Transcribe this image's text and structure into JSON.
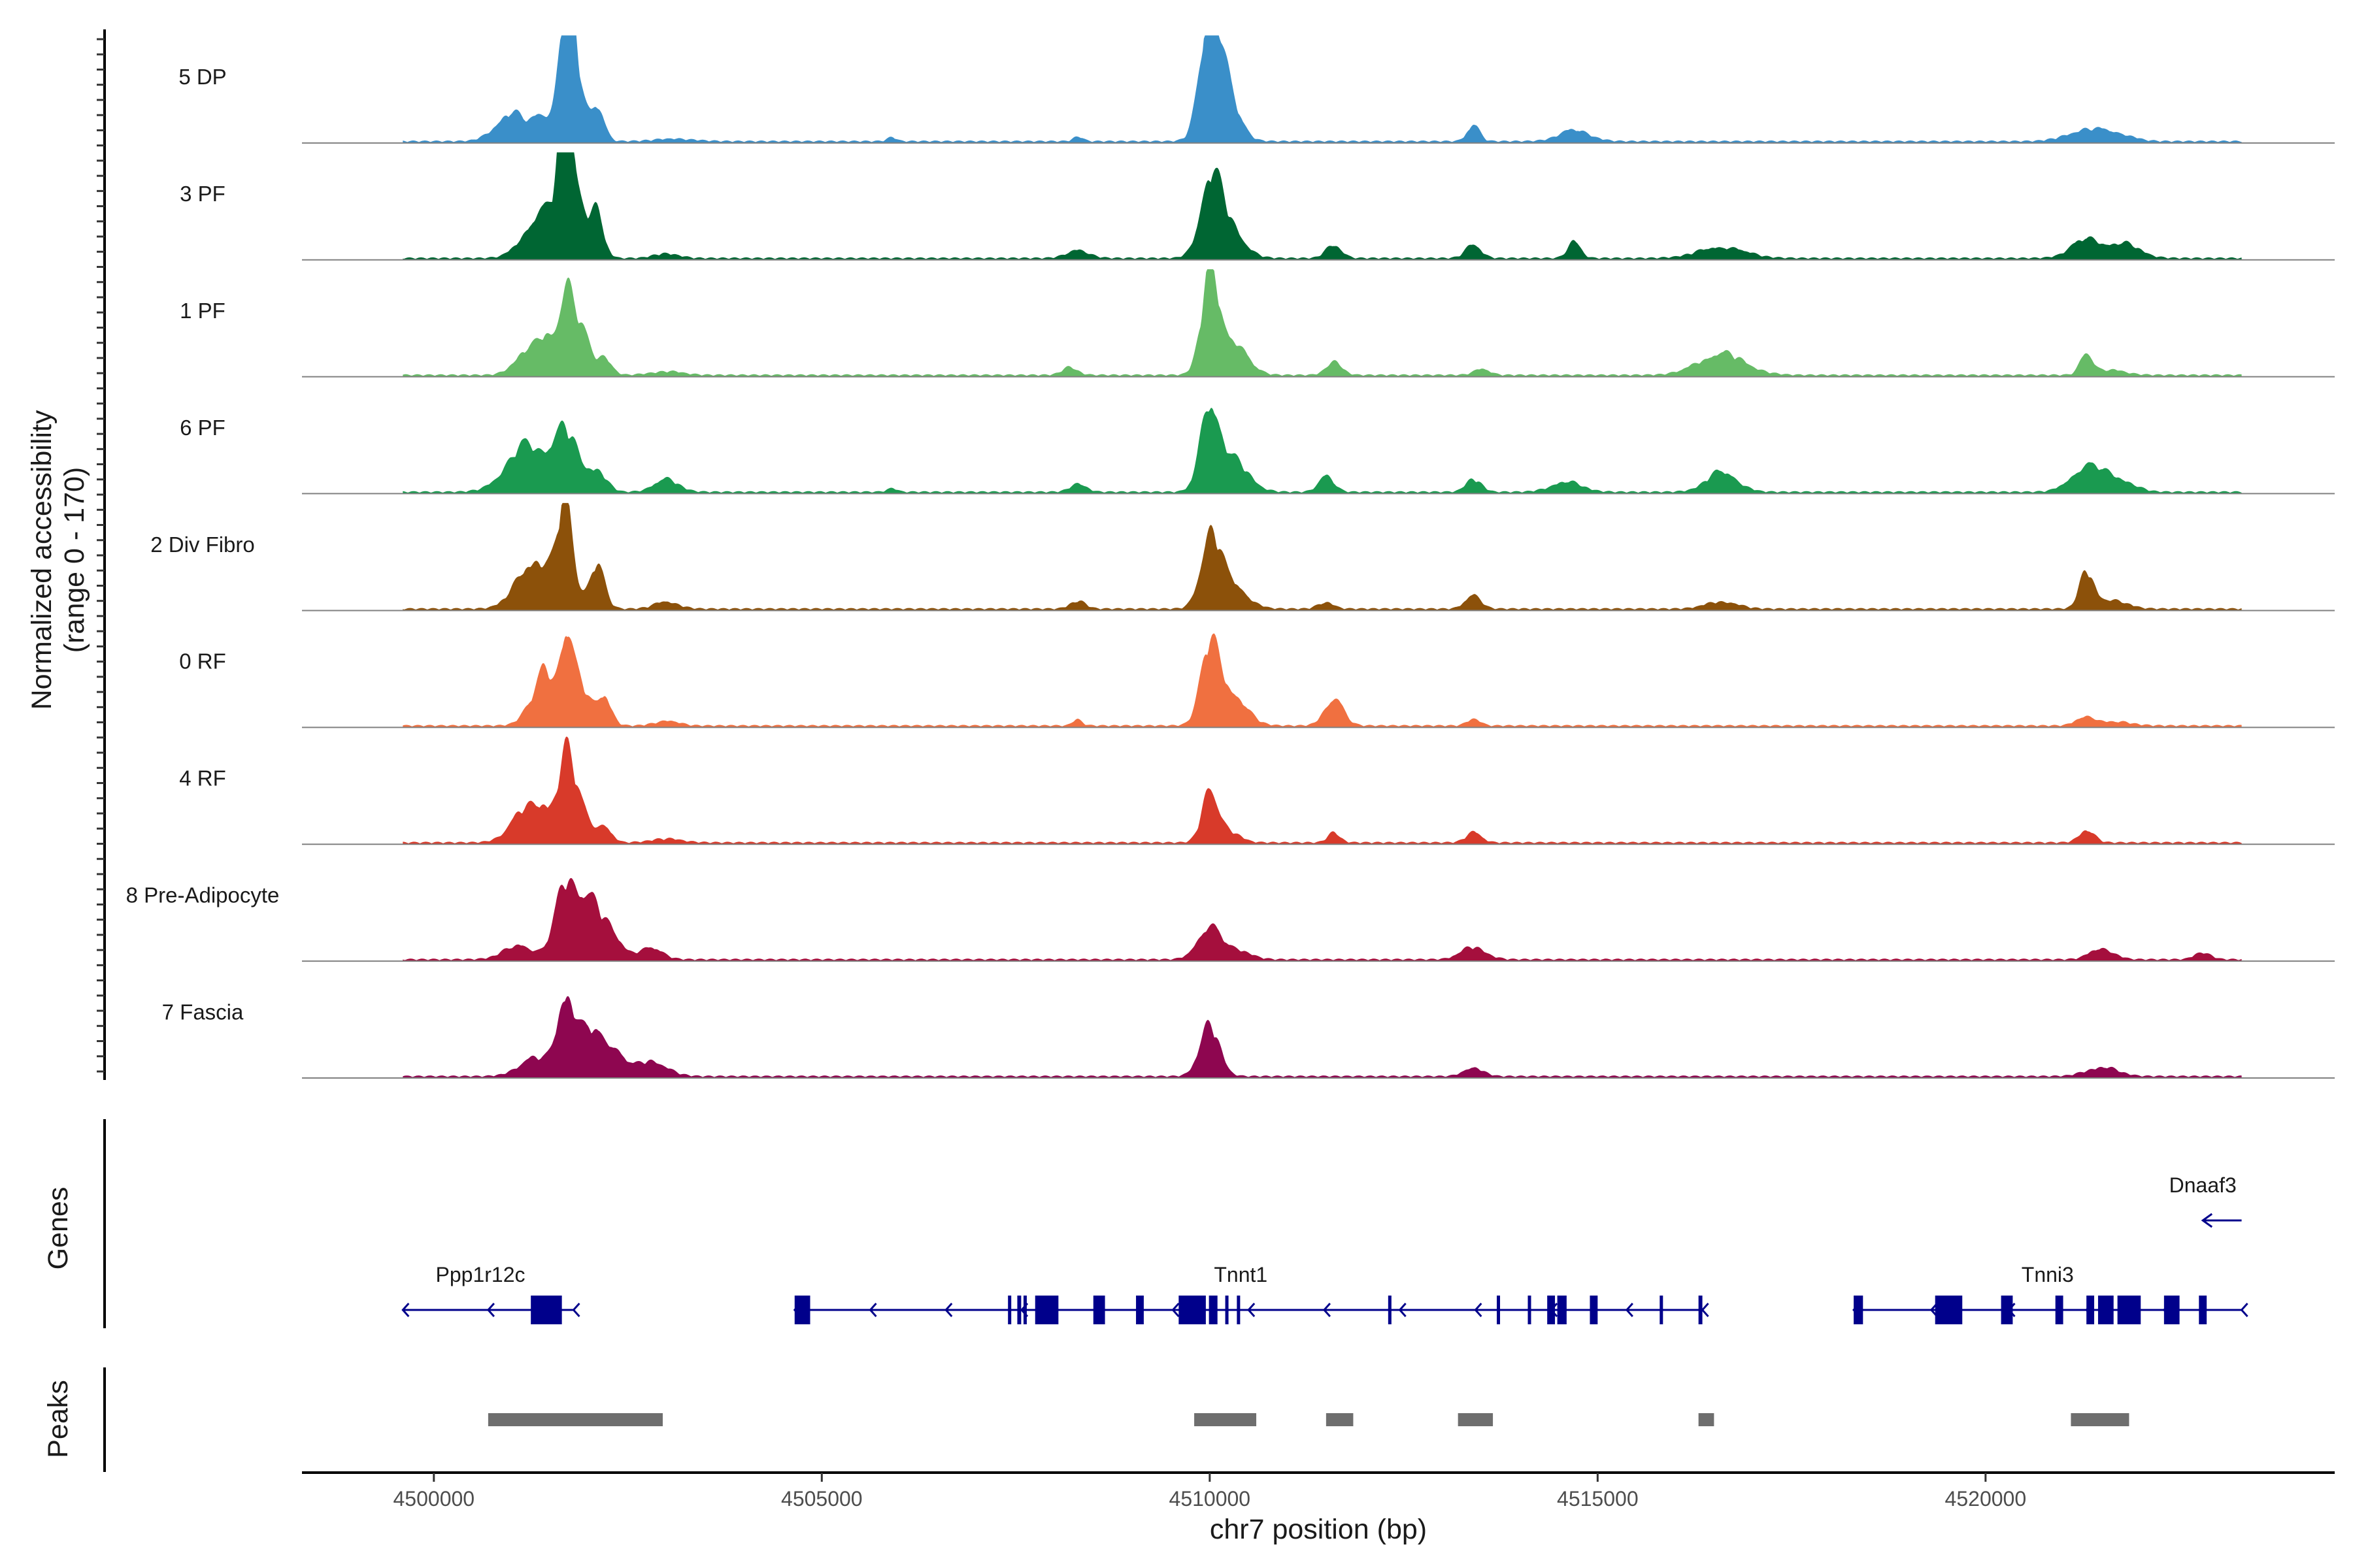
{
  "chart_data": {
    "type": "area",
    "title": "",
    "xlabel": "chr7 position (bp)",
    "ylabel": "Normalized accessibility",
    "ylabel_sub": "(range 0 - 170)",
    "xlim": [
      4498300,
      4524500
    ],
    "ylim": [
      0,
      170
    ],
    "x_ticks": [
      4500000,
      4505000,
      4510000,
      4515000,
      4520000
    ],
    "x_tick_labels": [
      "4500000",
      "4505000",
      "4510000",
      "4515000",
      "4520000"
    ],
    "coverage_range": [
      4499600,
      4523300
    ],
    "tracks": [
      {
        "name": "5 DP",
        "color": "#3A8FC9",
        "peaks": [
          [
            4501000,
            45,
            200
          ],
          [
            4501400,
            40,
            110
          ],
          [
            4501700,
            170,
            90
          ],
          [
            4501800,
            120,
            120
          ],
          [
            4502100,
            55,
            90
          ],
          [
            4503100,
            4,
            250
          ],
          [
            4505900,
            6,
            60
          ],
          [
            4508300,
            8,
            60
          ],
          [
            4510000,
            165,
            120
          ],
          [
            4510150,
            100,
            180
          ],
          [
            4513400,
            25,
            80
          ],
          [
            4514700,
            18,
            200
          ],
          [
            4521300,
            18,
            250
          ],
          [
            4521700,
            10,
            200
          ]
        ]
      },
      {
        "name": "3 PF",
        "color": "#006633",
        "peaks": [
          [
            4501400,
            75,
            220
          ],
          [
            4501700,
            170,
            90
          ],
          [
            4501800,
            100,
            140
          ],
          [
            4502100,
            65,
            90
          ],
          [
            4503000,
            8,
            150
          ],
          [
            4508300,
            12,
            150
          ],
          [
            4510000,
            100,
            130
          ],
          [
            4510200,
            60,
            200
          ],
          [
            4511600,
            22,
            100
          ],
          [
            4513400,
            22,
            100
          ],
          [
            4514700,
            30,
            80
          ],
          [
            4516600,
            18,
            300
          ],
          [
            4521300,
            30,
            200
          ],
          [
            4521800,
            22,
            200
          ]
        ]
      },
      {
        "name": "1 PF",
        "color": "#66BB66",
        "peaks": [
          [
            4501200,
            40,
            160
          ],
          [
            4501450,
            50,
            100
          ],
          [
            4501700,
            140,
            90
          ],
          [
            4501900,
            70,
            110
          ],
          [
            4502200,
            30,
            90
          ],
          [
            4503000,
            6,
            200
          ],
          [
            4508200,
            12,
            100
          ],
          [
            4510000,
            140,
            110
          ],
          [
            4510250,
            60,
            200
          ],
          [
            4511600,
            22,
            100
          ],
          [
            4513500,
            10,
            100
          ],
          [
            4516600,
            35,
            300
          ],
          [
            4521300,
            35,
            80
          ],
          [
            4521600,
            8,
            200
          ]
        ]
      },
      {
        "name": "6 PF",
        "color": "#1A9A50",
        "peaks": [
          [
            4501200,
            75,
            260
          ],
          [
            4501700,
            90,
            160
          ],
          [
            4502100,
            35,
            120
          ],
          [
            4503000,
            20,
            160
          ],
          [
            4505900,
            6,
            60
          ],
          [
            4508300,
            14,
            100
          ],
          [
            4510000,
            135,
            120
          ],
          [
            4510300,
            50,
            200
          ],
          [
            4511500,
            25,
            100
          ],
          [
            4513400,
            20,
            100
          ],
          [
            4514600,
            16,
            200
          ],
          [
            4516600,
            32,
            200
          ],
          [
            4521300,
            40,
            200
          ],
          [
            4521700,
            20,
            200
          ]
        ]
      },
      {
        "name": "2 Div Fibro",
        "color": "#8C510A",
        "peaks": [
          [
            4501300,
            80,
            220
          ],
          [
            4501700,
            170,
            100
          ],
          [
            4502100,
            70,
            100
          ],
          [
            4503000,
            12,
            150
          ],
          [
            4508300,
            12,
            100
          ],
          [
            4510000,
            105,
            120
          ],
          [
            4510250,
            45,
            200
          ],
          [
            4511500,
            10,
            100
          ],
          [
            4513400,
            22,
            100
          ],
          [
            4516600,
            12,
            200
          ],
          [
            4521300,
            55,
            90
          ],
          [
            4521600,
            15,
            200
          ]
        ]
      },
      {
        "name": "0 RF",
        "color": "#F07040",
        "peaks": [
          [
            4501300,
            40,
            140
          ],
          [
            4501450,
            65,
            90
          ],
          [
            4501700,
            150,
            90
          ],
          [
            4501900,
            60,
            110
          ],
          [
            4502200,
            50,
            90
          ],
          [
            4503000,
            8,
            150
          ],
          [
            4508300,
            10,
            60
          ],
          [
            4510000,
            110,
            120
          ],
          [
            4510250,
            55,
            200
          ],
          [
            4511600,
            45,
            120
          ],
          [
            4513400,
            12,
            80
          ],
          [
            4521300,
            15,
            120
          ],
          [
            4521700,
            6,
            200
          ]
        ]
      },
      {
        "name": "4 RF",
        "color": "#D83A2A",
        "peaks": [
          [
            4501200,
            55,
            200
          ],
          [
            4501450,
            35,
            100
          ],
          [
            4501700,
            130,
            100
          ],
          [
            4501900,
            55,
            120
          ],
          [
            4502200,
            25,
            90
          ],
          [
            4503000,
            6,
            200
          ],
          [
            4510000,
            80,
            100
          ],
          [
            4510200,
            20,
            160
          ],
          [
            4511600,
            15,
            80
          ],
          [
            4513400,
            16,
            100
          ],
          [
            4521300,
            20,
            100
          ]
        ]
      },
      {
        "name": "8 Pre-Adipocyte",
        "color": "#A50F3D",
        "peaks": [
          [
            4501100,
            22,
            200
          ],
          [
            4501700,
            115,
            140
          ],
          [
            4502000,
            90,
            150
          ],
          [
            4502300,
            35,
            150
          ],
          [
            4502800,
            18,
            150
          ],
          [
            4510000,
            55,
            150
          ],
          [
            4510400,
            14,
            150
          ],
          [
            4513400,
            20,
            160
          ],
          [
            4521500,
            18,
            150
          ],
          [
            4522800,
            12,
            100
          ]
        ]
      },
      {
        "name": "7 Fascia",
        "color": "#8E0650",
        "peaks": [
          [
            4501300,
            30,
            200
          ],
          [
            4501700,
            130,
            110
          ],
          [
            4502000,
            70,
            140
          ],
          [
            4502300,
            45,
            140
          ],
          [
            4502800,
            25,
            200
          ],
          [
            4510000,
            80,
            130
          ],
          [
            4513400,
            15,
            120
          ],
          [
            4521500,
            15,
            200
          ]
        ]
      }
    ],
    "genes": [
      {
        "name": "Ppp1r12c",
        "label_x": 4500600,
        "start": 4499600,
        "end": 4501800,
        "strand": "-",
        "exons": [
          [
            4501250,
            4501650
          ]
        ]
      },
      {
        "name": "Tnnt1",
        "label_x": 4510400,
        "start": 4504650,
        "end": 4516350,
        "strand": "-",
        "exons": [
          [
            4504650,
            4504850
          ],
          [
            4507400,
            4507430
          ],
          [
            4507520,
            4507570
          ],
          [
            4507600,
            4507640
          ],
          [
            4507750,
            4508050
          ],
          [
            4508500,
            4508650
          ],
          [
            4509050,
            4509150
          ],
          [
            4509600,
            4509950
          ],
          [
            4509990,
            4510100
          ],
          [
            4510200,
            4510230
          ],
          [
            4510350,
            4510380
          ],
          [
            4512300,
            4512320
          ],
          [
            4513700,
            4513720
          ],
          [
            4514100,
            4514120
          ],
          [
            4514350,
            4514450
          ],
          [
            4514480,
            4514600
          ],
          [
            4514900,
            4515000
          ],
          [
            4515800,
            4515830
          ],
          [
            4516300,
            4516350
          ]
        ]
      },
      {
        "name": "Tnni3",
        "label_x": 4520800,
        "start": 4518300,
        "end": 4523300,
        "strand": "-",
        "exons": [
          [
            4518300,
            4518420
          ],
          [
            4519350,
            4519700
          ],
          [
            4520200,
            4520350
          ],
          [
            4520900,
            4521000
          ],
          [
            4521300,
            4521400
          ],
          [
            4521450,
            4521650
          ],
          [
            4521700,
            4522000
          ],
          [
            4522300,
            4522500
          ],
          [
            4522750,
            4522850
          ]
        ]
      },
      {
        "name": "Dnaaf3",
        "label_x": 4522800,
        "start": 4522800,
        "end": 4523300,
        "strand": "-",
        "exons": []
      }
    ],
    "peak_regions": [
      [
        4500700,
        4502950
      ],
      [
        4509800,
        4510600
      ],
      [
        4511500,
        4511850
      ],
      [
        4513200,
        4513650
      ],
      [
        4516300,
        4516500
      ],
      [
        4521100,
        4521850
      ]
    ],
    "panel_titles": {
      "genes": "Genes",
      "peaks": "Peaks"
    }
  }
}
